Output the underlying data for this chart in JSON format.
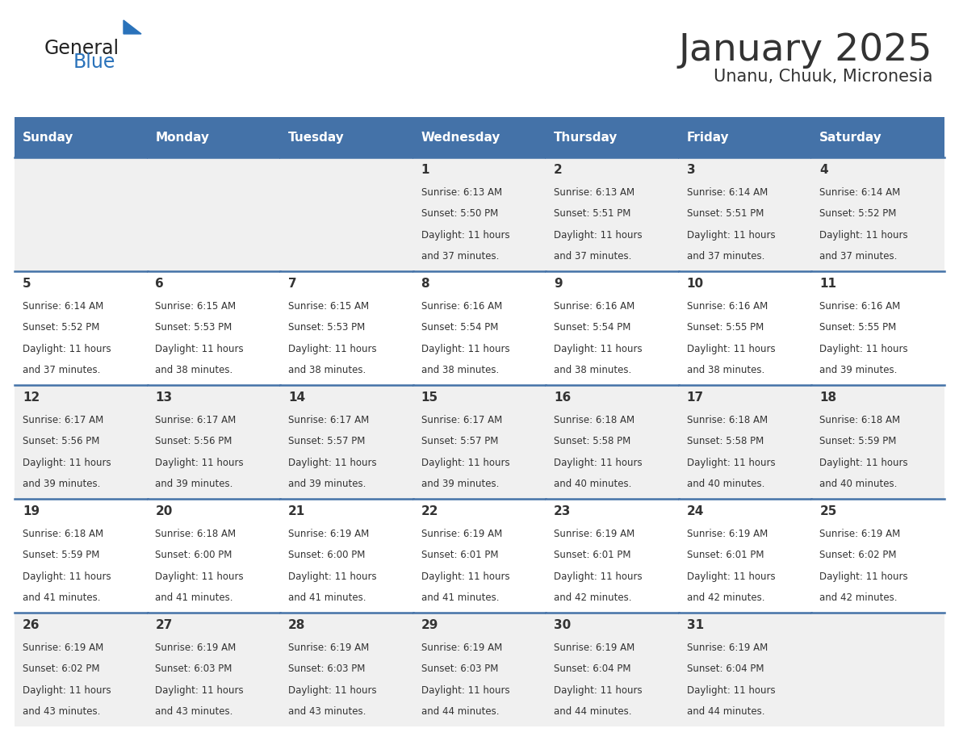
{
  "title": "January 2025",
  "subtitle": "Unanu, Chuuk, Micronesia",
  "header_bg_color": "#4472a8",
  "header_text_color": "#ffffff",
  "cell_bg_odd": "#f0f0f0",
  "cell_bg_even": "#ffffff",
  "day_names": [
    "Sunday",
    "Monday",
    "Tuesday",
    "Wednesday",
    "Thursday",
    "Friday",
    "Saturday"
  ],
  "text_color": "#333333",
  "line_color": "#4472a8",
  "logo_general_color": "#222222",
  "logo_blue_color": "#2a72ba",
  "calendar_data": [
    {
      "day": 1,
      "col": 3,
      "row": 0,
      "sunrise": "6:13 AM",
      "sunset": "5:50 PM",
      "daylight": "11 hours and 37 minutes."
    },
    {
      "day": 2,
      "col": 4,
      "row": 0,
      "sunrise": "6:13 AM",
      "sunset": "5:51 PM",
      "daylight": "11 hours and 37 minutes."
    },
    {
      "day": 3,
      "col": 5,
      "row": 0,
      "sunrise": "6:14 AM",
      "sunset": "5:51 PM",
      "daylight": "11 hours and 37 minutes."
    },
    {
      "day": 4,
      "col": 6,
      "row": 0,
      "sunrise": "6:14 AM",
      "sunset": "5:52 PM",
      "daylight": "11 hours and 37 minutes."
    },
    {
      "day": 5,
      "col": 0,
      "row": 1,
      "sunrise": "6:14 AM",
      "sunset": "5:52 PM",
      "daylight": "11 hours and 37 minutes."
    },
    {
      "day": 6,
      "col": 1,
      "row": 1,
      "sunrise": "6:15 AM",
      "sunset": "5:53 PM",
      "daylight": "11 hours and 38 minutes."
    },
    {
      "day": 7,
      "col": 2,
      "row": 1,
      "sunrise": "6:15 AM",
      "sunset": "5:53 PM",
      "daylight": "11 hours and 38 minutes."
    },
    {
      "day": 8,
      "col": 3,
      "row": 1,
      "sunrise": "6:16 AM",
      "sunset": "5:54 PM",
      "daylight": "11 hours and 38 minutes."
    },
    {
      "day": 9,
      "col": 4,
      "row": 1,
      "sunrise": "6:16 AM",
      "sunset": "5:54 PM",
      "daylight": "11 hours and 38 minutes."
    },
    {
      "day": 10,
      "col": 5,
      "row": 1,
      "sunrise": "6:16 AM",
      "sunset": "5:55 PM",
      "daylight": "11 hours and 38 minutes."
    },
    {
      "day": 11,
      "col": 6,
      "row": 1,
      "sunrise": "6:16 AM",
      "sunset": "5:55 PM",
      "daylight": "11 hours and 39 minutes."
    },
    {
      "day": 12,
      "col": 0,
      "row": 2,
      "sunrise": "6:17 AM",
      "sunset": "5:56 PM",
      "daylight": "11 hours and 39 minutes."
    },
    {
      "day": 13,
      "col": 1,
      "row": 2,
      "sunrise": "6:17 AM",
      "sunset": "5:56 PM",
      "daylight": "11 hours and 39 minutes."
    },
    {
      "day": 14,
      "col": 2,
      "row": 2,
      "sunrise": "6:17 AM",
      "sunset": "5:57 PM",
      "daylight": "11 hours and 39 minutes."
    },
    {
      "day": 15,
      "col": 3,
      "row": 2,
      "sunrise": "6:17 AM",
      "sunset": "5:57 PM",
      "daylight": "11 hours and 39 minutes."
    },
    {
      "day": 16,
      "col": 4,
      "row": 2,
      "sunrise": "6:18 AM",
      "sunset": "5:58 PM",
      "daylight": "11 hours and 40 minutes."
    },
    {
      "day": 17,
      "col": 5,
      "row": 2,
      "sunrise": "6:18 AM",
      "sunset": "5:58 PM",
      "daylight": "11 hours and 40 minutes."
    },
    {
      "day": 18,
      "col": 6,
      "row": 2,
      "sunrise": "6:18 AM",
      "sunset": "5:59 PM",
      "daylight": "11 hours and 40 minutes."
    },
    {
      "day": 19,
      "col": 0,
      "row": 3,
      "sunrise": "6:18 AM",
      "sunset": "5:59 PM",
      "daylight": "11 hours and 41 minutes."
    },
    {
      "day": 20,
      "col": 1,
      "row": 3,
      "sunrise": "6:18 AM",
      "sunset": "6:00 PM",
      "daylight": "11 hours and 41 minutes."
    },
    {
      "day": 21,
      "col": 2,
      "row": 3,
      "sunrise": "6:19 AM",
      "sunset": "6:00 PM",
      "daylight": "11 hours and 41 minutes."
    },
    {
      "day": 22,
      "col": 3,
      "row": 3,
      "sunrise": "6:19 AM",
      "sunset": "6:01 PM",
      "daylight": "11 hours and 41 minutes."
    },
    {
      "day": 23,
      "col": 4,
      "row": 3,
      "sunrise": "6:19 AM",
      "sunset": "6:01 PM",
      "daylight": "11 hours and 42 minutes."
    },
    {
      "day": 24,
      "col": 5,
      "row": 3,
      "sunrise": "6:19 AM",
      "sunset": "6:01 PM",
      "daylight": "11 hours and 42 minutes."
    },
    {
      "day": 25,
      "col": 6,
      "row": 3,
      "sunrise": "6:19 AM",
      "sunset": "6:02 PM",
      "daylight": "11 hours and 42 minutes."
    },
    {
      "day": 26,
      "col": 0,
      "row": 4,
      "sunrise": "6:19 AM",
      "sunset": "6:02 PM",
      "daylight": "11 hours and 43 minutes."
    },
    {
      "day": 27,
      "col": 1,
      "row": 4,
      "sunrise": "6:19 AM",
      "sunset": "6:03 PM",
      "daylight": "11 hours and 43 minutes."
    },
    {
      "day": 28,
      "col": 2,
      "row": 4,
      "sunrise": "6:19 AM",
      "sunset": "6:03 PM",
      "daylight": "11 hours and 43 minutes."
    },
    {
      "day": 29,
      "col": 3,
      "row": 4,
      "sunrise": "6:19 AM",
      "sunset": "6:03 PM",
      "daylight": "11 hours and 44 minutes."
    },
    {
      "day": 30,
      "col": 4,
      "row": 4,
      "sunrise": "6:19 AM",
      "sunset": "6:04 PM",
      "daylight": "11 hours and 44 minutes."
    },
    {
      "day": 31,
      "col": 5,
      "row": 4,
      "sunrise": "6:19 AM",
      "sunset": "6:04 PM",
      "daylight": "11 hours and 44 minutes."
    }
  ]
}
